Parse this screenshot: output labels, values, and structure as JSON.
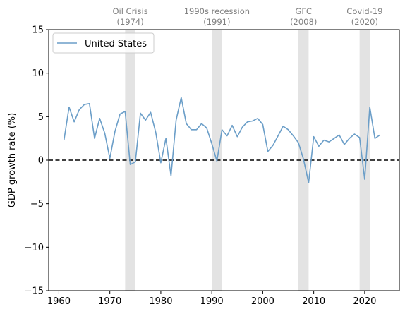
{
  "chart_data": {
    "type": "line",
    "ylabel": "GDP growth rate (%)",
    "xlim": [
      1958,
      2026.8
    ],
    "ylim": [
      -15,
      15
    ],
    "xticks": [
      1960,
      1970,
      1980,
      1990,
      2000,
      2010,
      2020
    ],
    "yticks": [
      -15,
      -10,
      -5,
      0,
      5,
      10,
      15
    ],
    "legend_position": "top-left",
    "colors": {
      "series": "#6b9ec8",
      "shade": "#e3e3e3",
      "zero_line": "#000000",
      "annotation": "#808080"
    },
    "reference_line": {
      "y": 0,
      "style": "dashed"
    },
    "series": [
      {
        "name": "United States",
        "x": [
          1961,
          1962,
          1963,
          1964,
          1965,
          1966,
          1967,
          1968,
          1969,
          1970,
          1971,
          1972,
          1973,
          1974,
          1975,
          1976,
          1977,
          1978,
          1979,
          1980,
          1981,
          1982,
          1983,
          1984,
          1985,
          1986,
          1987,
          1988,
          1989,
          1990,
          1991,
          1992,
          1993,
          1994,
          1995,
          1996,
          1997,
          1998,
          1999,
          2000,
          2001,
          2002,
          2003,
          2004,
          2005,
          2006,
          2007,
          2008,
          2009,
          2010,
          2011,
          2012,
          2013,
          2014,
          2015,
          2016,
          2017,
          2018,
          2019,
          2020,
          2021,
          2022,
          2023
        ],
        "values": [
          2.3,
          6.1,
          4.4,
          5.8,
          6.4,
          6.5,
          2.5,
          4.8,
          3.1,
          0.2,
          3.3,
          5.3,
          5.6,
          -0.5,
          -0.2,
          5.4,
          4.6,
          5.5,
          3.2,
          -0.3,
          2.5,
          -1.8,
          4.6,
          7.2,
          4.2,
          3.5,
          3.5,
          4.2,
          3.7,
          1.9,
          -0.1,
          3.5,
          2.8,
          4.0,
          2.7,
          3.8,
          4.4,
          4.5,
          4.8,
          4.1,
          1.0,
          1.7,
          2.8,
          3.9,
          3.5,
          2.8,
          2.0,
          0.1,
          -2.6,
          2.7,
          1.6,
          2.3,
          2.1,
          2.5,
          2.9,
          1.8,
          2.5,
          3.0,
          2.6,
          -2.2,
          6.1,
          2.5,
          2.9
        ]
      }
    ],
    "shaded_periods": [
      {
        "start": 1973,
        "end": 1975,
        "label_line1": "Oil Crisis",
        "label_line2": "(1974)",
        "label_x": 1974
      },
      {
        "start": 1990,
        "end": 1992,
        "label_line1": "1990s recession",
        "label_line2": "(1991)",
        "label_x": 1991
      },
      {
        "start": 2007,
        "end": 2009,
        "label_line1": "GFC",
        "label_line2": "(2008)",
        "label_x": 2008
      },
      {
        "start": 2019,
        "end": 2021,
        "label_line1": "Covid-19",
        "label_line2": "(2020)",
        "label_x": 2020
      }
    ]
  }
}
